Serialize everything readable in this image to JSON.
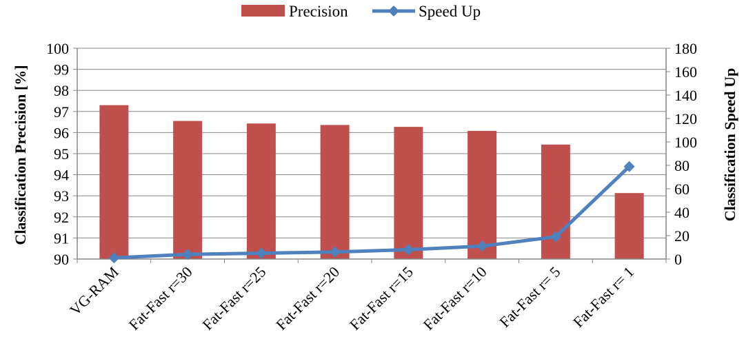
{
  "chart_data": {
    "type": "bar+line",
    "categories": [
      "VG-RAM",
      "Fat-Fast r=30",
      "Fat-Fast r=25",
      "Fat-Fast r=20",
      "Fat-Fast r=15",
      "Fat-Fast r=10",
      "Fat-Fast r= 5",
      "Fat-Fast r= 1"
    ],
    "series": [
      {
        "name": "Precision",
        "type": "bar",
        "axis": "left",
        "color": "#C0504D",
        "values": [
          97.3,
          96.55,
          96.43,
          96.36,
          96.27,
          96.08,
          95.43,
          93.13
        ]
      },
      {
        "name": "Speed Up",
        "type": "line",
        "axis": "right",
        "color": "#4F81BD",
        "values": [
          1,
          4,
          5,
          6,
          8,
          11,
          19,
          79
        ]
      }
    ],
    "ylabel_left": "Classification Precision [%]",
    "ylabel_right": "Classification Speed Up",
    "ylim_left": [
      90,
      100
    ],
    "yticks_left": [
      90,
      91,
      92,
      93,
      94,
      95,
      96,
      97,
      98,
      99,
      100
    ],
    "ylim_right": [
      0,
      180
    ],
    "yticks_right": [
      0,
      20,
      40,
      60,
      80,
      100,
      120,
      140,
      160,
      180
    ],
    "grid": true,
    "legend": "top-center"
  }
}
